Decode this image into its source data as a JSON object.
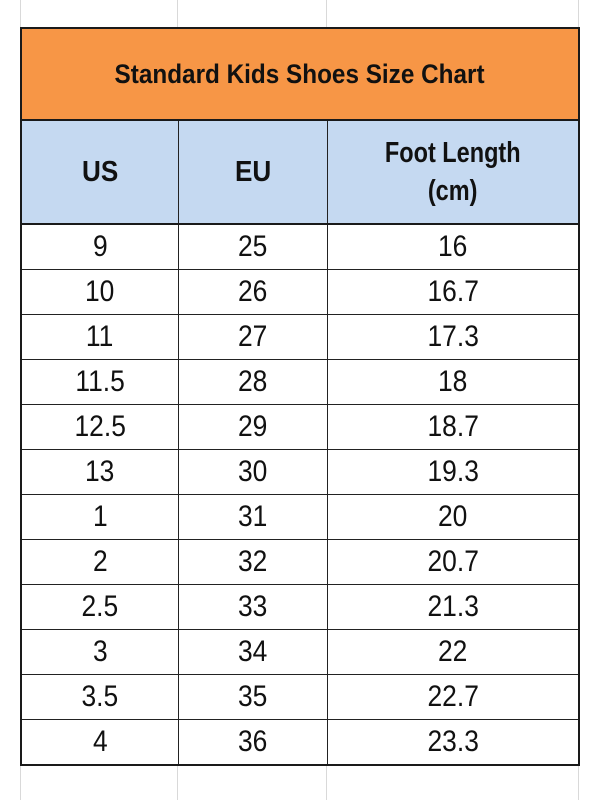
{
  "title": "Standard Kids Shoes Size Chart",
  "headers": [
    "US",
    "EU",
    "Foot Length (cm)"
  ],
  "header_foot_line1": "Foot Length",
  "header_foot_line2": "(cm)",
  "colors": {
    "title_bg": "#f79646",
    "header_bg": "#c5d9f1",
    "border": "#1a1a1a"
  },
  "rows": [
    {
      "us": "9",
      "eu": "25",
      "cm": "16"
    },
    {
      "us": "10",
      "eu": "26",
      "cm": "16.7"
    },
    {
      "us": "11",
      "eu": "27",
      "cm": "17.3"
    },
    {
      "us": "11.5",
      "eu": "28",
      "cm": "18"
    },
    {
      "us": "12.5",
      "eu": "29",
      "cm": "18.7"
    },
    {
      "us": "13",
      "eu": "30",
      "cm": "19.3"
    },
    {
      "us": "1",
      "eu": "31",
      "cm": "20"
    },
    {
      "us": "2",
      "eu": "32",
      "cm": "20.7"
    },
    {
      "us": "2.5",
      "eu": "33",
      "cm": "21.3"
    },
    {
      "us": "3",
      "eu": "34",
      "cm": "22"
    },
    {
      "us": "3.5",
      "eu": "35",
      "cm": "22.7"
    },
    {
      "us": "4",
      "eu": "36",
      "cm": "23.3"
    }
  ]
}
